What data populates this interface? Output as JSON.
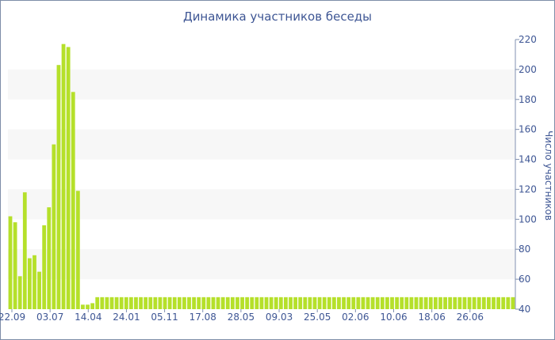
{
  "chart_data": {
    "type": "bar",
    "title": "Динамика участников беседы",
    "ylabel": "Число участников",
    "xlabel": "",
    "ylim": [
      40,
      220
    ],
    "y_ticks": [
      40,
      60,
      80,
      100,
      120,
      140,
      160,
      180,
      200,
      220
    ],
    "x_tick_labels": [
      "22.09",
      "03.07",
      "14.04",
      "24.01",
      "05.11",
      "17.08",
      "28.05",
      "09.03",
      "25.05",
      "02.06",
      "10.06",
      "18.06",
      "26.06"
    ],
    "grid": "alternating horizontal bands",
    "y_axis_position": "right",
    "bar_color": "#b5e02a",
    "band_color": "#f7f7f7",
    "values": [
      102,
      98,
      62,
      118,
      74,
      76,
      65,
      96,
      108,
      150,
      203,
      217,
      215,
      185,
      119,
      43,
      43,
      44,
      48,
      48,
      48,
      48,
      48,
      48,
      48,
      48,
      48,
      48,
      48,
      48,
      48,
      48,
      48,
      48,
      48,
      48,
      48,
      48,
      48,
      48,
      48,
      48,
      48,
      48,
      48,
      48,
      48,
      48,
      48,
      48,
      48,
      48,
      48,
      48,
      48,
      48,
      48,
      48,
      48,
      48,
      48,
      48,
      48,
      48,
      48,
      48,
      48,
      48,
      48,
      48,
      48,
      48,
      48,
      48,
      48,
      48,
      48,
      48,
      48,
      48,
      48,
      48,
      48,
      48,
      48,
      48,
      48,
      48,
      48,
      48,
      48,
      48,
      48,
      48,
      48,
      48,
      48,
      48,
      48,
      48,
      48,
      48,
      48,
      48,
      48
    ]
  }
}
